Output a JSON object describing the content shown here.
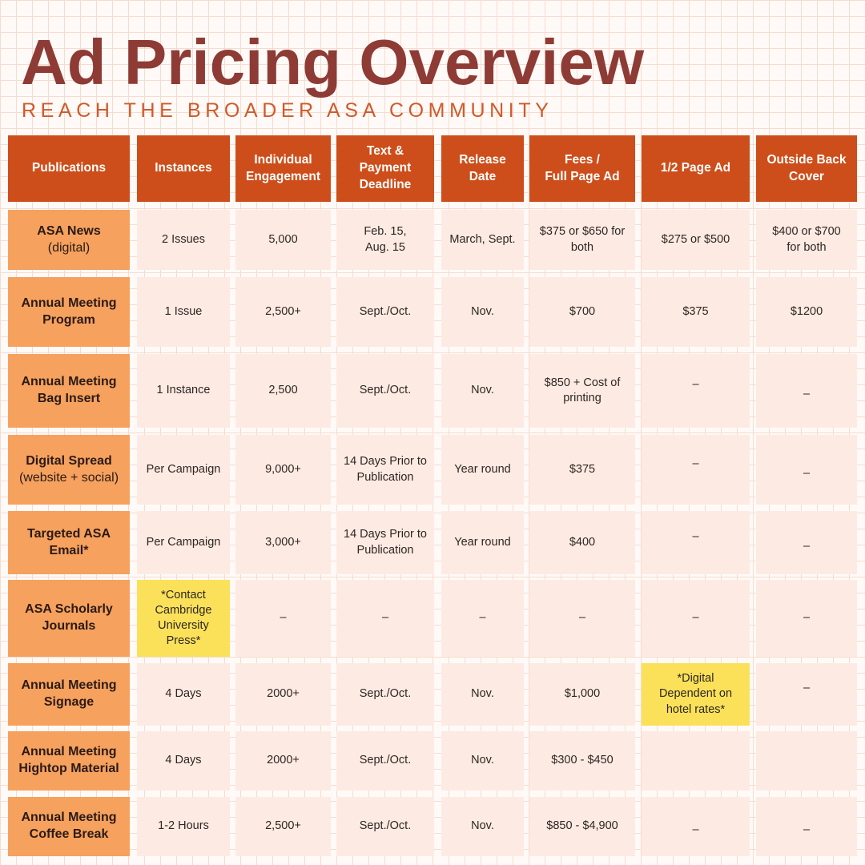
{
  "title": "Ad Pricing Overview",
  "subtitle": "REACH THE BROADER ASA COMMUNITY",
  "headers": [
    "Publications",
    "Instances",
    "Individual\nEngagement",
    "Text &\nPayment\nDeadline",
    "Release\nDate",
    "Fees /\nFull Page Ad",
    "1/2 Page Ad",
    "Outside Back\nCover"
  ],
  "rows": [
    {
      "publication": "ASA News",
      "publication_sub": "(digital)",
      "cells": [
        "2 Issues",
        "5,000",
        "Feb. 15,\nAug. 15",
        "March, Sept.",
        "$375 or $650 for\nboth",
        "$275 or $500",
        "$400 or $700\nfor both"
      ]
    },
    {
      "publication": "Annual Meeting\nProgram",
      "publication_sub": "",
      "cells": [
        "1 Issue",
        "2,500+",
        "Sept./Oct.",
        "Nov.",
        "$700",
        "$375",
        "$1200"
      ]
    },
    {
      "publication": "Annual Meeting\nBag Insert",
      "publication_sub": "",
      "cells": [
        "1 Instance",
        "2,500",
        "Sept./Oct.",
        "Nov.",
        "$850 + Cost of\nprinting",
        "–",
        "–"
      ]
    },
    {
      "publication": "Digital Spread",
      "publication_sub": "(website + social)",
      "cells": [
        "Per Campaign",
        "9,000+",
        "14 Days Prior to\nPublication",
        "Year round",
        "$375",
        "–",
        "–"
      ]
    },
    {
      "publication": "Targeted ASA\nEmail*",
      "publication_sub": "",
      "cells": [
        "Per Campaign",
        "3,000+",
        "14 Days Prior to\nPublication",
        "Year round",
        "$400",
        "–",
        "–"
      ]
    },
    {
      "publication": "ASA Scholarly\nJournals",
      "publication_sub": "",
      "cells": [
        "*Contact\nCambridge\nUniversity\nPress*",
        "–",
        "–",
        "–",
        "–",
        "–",
        "–"
      ]
    },
    {
      "publication": "Annual Meeting\nSignage",
      "publication_sub": "",
      "cells": [
        "4 Days",
        "2000+",
        "Sept./Oct.",
        "Nov.",
        "$1,000",
        "*Digital\nDependent on\nhotel rates*",
        "–"
      ]
    },
    {
      "publication": "Annual Meeting\nHightop Material",
      "publication_sub": "",
      "cells": [
        "4 Days",
        "2000+",
        "Sept./Oct.",
        "Nov.",
        "$300 - $450",
        "",
        ""
      ]
    },
    {
      "publication": "Annual Meeting\nCoffee Break",
      "publication_sub": "",
      "cells": [
        "1-2 Hours",
        "2,500+",
        "Sept./Oct.",
        "Nov.",
        "$850 - $4,900",
        "–",
        "–"
      ]
    }
  ],
  "colors": {
    "title": "#8e3b35",
    "subtitle": "#cf5a2a",
    "header_bg": "#cd4e1a",
    "publication_bg": "#f6a15d",
    "cell_bg": "#fdebe3",
    "highlight_bg": "#fbe15a",
    "grid_line": "#f6dcd0"
  }
}
